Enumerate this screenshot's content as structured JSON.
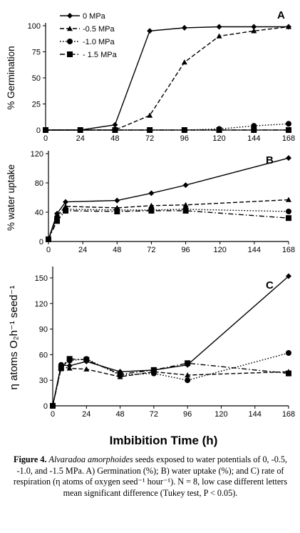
{
  "chart_data": [
    {
      "type": "line",
      "panel_label": "A",
      "ylabel": "% Germination",
      "x": [
        0,
        24,
        48,
        72,
        96,
        120,
        144,
        168
      ],
      "xticks": [
        "0",
        "24",
        "48",
        "72",
        "96",
        "120",
        "144",
        "168"
      ],
      "yticks": [
        "0",
        "25",
        "50",
        "75",
        "100"
      ],
      "xlim": [
        0,
        168
      ],
      "ylim": [
        0,
        100
      ],
      "legend_placement": "top-left",
      "series": [
        {
          "name": "0 MPa",
          "marker": "diamond",
          "dash": "solid",
          "values": [
            0,
            0,
            5,
            95,
            98,
            99,
            99,
            99
          ]
        },
        {
          "name": "-0.5 MPa",
          "marker": "triangle",
          "dash": "dashed",
          "values": [
            0,
            0,
            0,
            14,
            65,
            90,
            95,
            99
          ]
        },
        {
          "name": "-1.0 MPa",
          "marker": "circle",
          "dash": "dotted",
          "values": [
            0,
            0,
            0,
            0,
            0,
            1,
            4,
            6
          ]
        },
        {
          "name": "- 1.5 MPa",
          "marker": "square",
          "dash": "dashdot",
          "values": [
            0,
            0,
            0,
            0,
            0,
            0,
            0,
            0
          ]
        }
      ]
    },
    {
      "type": "line",
      "panel_label": "B",
      "ylabel": "% water uptake",
      "x": [
        0,
        6,
        12,
        48,
        72,
        96,
        168
      ],
      "xticks": [
        "0",
        "24",
        "48",
        "72",
        "96",
        "120",
        "144",
        "168"
      ],
      "yticks": [
        "0",
        "40",
        "80",
        "120"
      ],
      "xlim": [
        0,
        168
      ],
      "ylim": [
        0,
        120
      ],
      "series": [
        {
          "name": "0 MPa",
          "marker": "diamond",
          "dash": "solid",
          "values": [
            3,
            38,
            54,
            56,
            66,
            77,
            114
          ]
        },
        {
          "name": "-0.5 MPa",
          "marker": "triangle",
          "dash": "dashed",
          "values": [
            3,
            35,
            48,
            46,
            49,
            50,
            57
          ]
        },
        {
          "name": "-1.0 MPa",
          "marker": "circle",
          "dash": "dotted",
          "values": [
            3,
            33,
            44,
            43,
            43,
            44,
            41
          ]
        },
        {
          "name": "- 1.5 MPa",
          "marker": "square",
          "dash": "dashdot",
          "values": [
            3,
            28,
            42,
            41,
            42,
            42,
            32
          ]
        }
      ]
    },
    {
      "type": "line",
      "panel_label": "C",
      "ylabel": "η atoms O₂h⁻¹ seed⁻¹",
      "xlabel": "Imbibition Time (h)",
      "x": [
        0,
        6,
        12,
        24,
        48,
        72,
        96,
        168
      ],
      "xticks": [
        "0",
        "24",
        "48",
        "72",
        "96",
        "120",
        "144",
        "168"
      ],
      "yticks": [
        "0",
        "30",
        "60",
        "90",
        "120",
        "150"
      ],
      "xlim": [
        0,
        168
      ],
      "ylim": [
        0,
        160
      ],
      "series": [
        {
          "name": "0 MPa",
          "marker": "diamond",
          "dash": "solid",
          "values": [
            0,
            48,
            47,
            52,
            40,
            42,
            48,
            152
          ]
        },
        {
          "name": "-0.5 MPa",
          "marker": "triangle",
          "dash": "dashed",
          "values": [
            0,
            46,
            44,
            43,
            34,
            40,
            36,
            40
          ]
        },
        {
          "name": "-1.0 MPa",
          "marker": "circle",
          "dash": "dotted",
          "values": [
            0,
            48,
            53,
            55,
            36,
            38,
            30,
            62
          ]
        },
        {
          "name": "- 1.5 MPa",
          "marker": "square",
          "dash": "dashdot",
          "values": [
            0,
            44,
            55,
            54,
            37,
            42,
            50,
            38
          ]
        }
      ]
    }
  ],
  "caption": {
    "label": "Figure 4.",
    "italic": "Alvaradoa amorphoides",
    "rest": " seeds exposed to water potentials of 0, -0.5, -1.0, and -1.5 MPa. A) Germination (%); B) water uptake (%); and C) rate of respiration (η atoms of oxygen seed⁻¹ hour⁻¹). N = 8, low case different letters mean significant difference (Tukey test, P < 0.05)."
  }
}
